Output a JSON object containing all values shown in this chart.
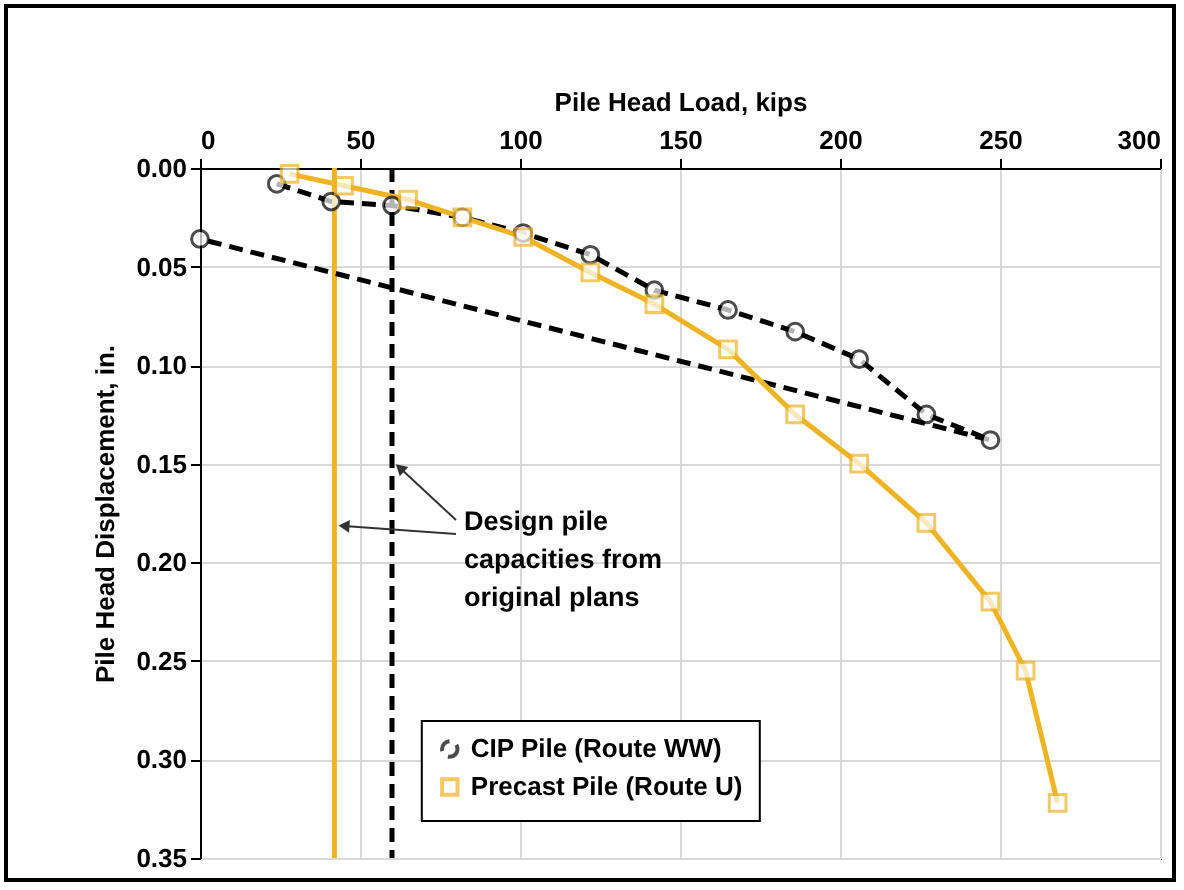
{
  "chart_data": {
    "type": "line",
    "xlabel": "Pile Head Load, kips",
    "ylabel": "Pile Head Displacement, in.",
    "xlim": [
      0,
      300
    ],
    "xticks": [
      0,
      50,
      100,
      150,
      200,
      250,
      300
    ],
    "ylim": [
      0.35,
      0
    ],
    "yticks": [
      {
        "value": 0,
        "label": "0.00"
      },
      {
        "value": 0.05,
        "label": "0.05"
      },
      {
        "value": 0.1,
        "label": "0.10"
      },
      {
        "value": 0.15,
        "label": "0.15"
      },
      {
        "value": 0.2,
        "label": "0.20"
      },
      {
        "value": 0.25,
        "label": "0.25"
      },
      {
        "value": 0.3,
        "label": "0.30"
      },
      {
        "value": 0.35,
        "label": "0.35"
      }
    ],
    "grid": true,
    "legend": "bottom",
    "series": [
      {
        "name": "CIP Pile (Route WW)",
        "color": "#000000",
        "marker": "circle",
        "line_style": "dashed",
        "x": [
          24,
          41,
          60,
          82,
          101,
          122,
          142,
          165,
          186,
          206,
          227,
          247,
          0
        ],
        "values": [
          0.008,
          0.017,
          0.019,
          0.025,
          0.033,
          0.044,
          0.062,
          0.072,
          0.083,
          0.097,
          0.125,
          0.138,
          0.036
        ]
      },
      {
        "name": "Precast Pile (Route U)",
        "color": "#f0b323",
        "marker": "square",
        "line_style": "solid",
        "x": [
          28,
          45,
          65,
          82,
          101,
          122,
          142,
          165,
          186,
          206,
          227,
          247,
          258,
          268
        ],
        "values": [
          0.003,
          0.009,
          0.016,
          0.025,
          0.035,
          0.053,
          0.069,
          0.092,
          0.125,
          0.15,
          0.18,
          0.22,
          0.255,
          0.322
        ]
      }
    ],
    "ref_lines": [
      {
        "axis": "x",
        "value": 42,
        "color": "#f0b323",
        "line_style": "solid"
      },
      {
        "axis": "x",
        "value": 60,
        "color": "#000000",
        "line_style": "dashed"
      }
    ],
    "annotations": [
      "Design pile\ncapacities from\noriginal plans"
    ]
  }
}
